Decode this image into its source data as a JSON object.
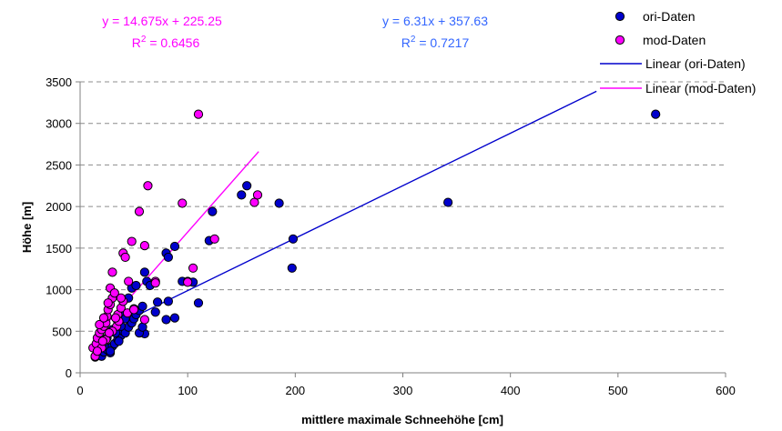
{
  "chart_data": {
    "type": "scatter",
    "xlabel": "mittlere maximale Schneehöhe [cm]",
    "ylabel": "Höhe [m]",
    "xlim": [
      0,
      600
    ],
    "ylim": [
      0,
      3500
    ],
    "xticks": [
      0,
      100,
      200,
      300,
      400,
      500,
      600
    ],
    "yticks": [
      0,
      500,
      1000,
      1500,
      2000,
      2500,
      3000,
      3500
    ],
    "grid": "horizontal dashed",
    "legend_position": "top-right",
    "series": [
      {
        "name": "ori-Daten",
        "kind": "points",
        "color": "#0000CC",
        "points": [
          [
            14,
            190
          ],
          [
            16,
            210
          ],
          [
            18,
            230
          ],
          [
            20,
            200
          ],
          [
            22,
            250
          ],
          [
            25,
            280
          ],
          [
            27,
            300
          ],
          [
            28,
            240
          ],
          [
            30,
            320
          ],
          [
            32,
            350
          ],
          [
            35,
            400
          ],
          [
            38,
            450
          ],
          [
            40,
            500
          ],
          [
            42,
            480
          ],
          [
            45,
            550
          ],
          [
            48,
            600
          ],
          [
            50,
            650
          ],
          [
            52,
            700
          ],
          [
            55,
            750
          ],
          [
            58,
            800
          ],
          [
            60,
            470
          ],
          [
            62,
            1100
          ],
          [
            65,
            1050
          ],
          [
            70,
            730
          ],
          [
            72,
            850
          ],
          [
            80,
            640
          ],
          [
            82,
            860
          ],
          [
            88,
            660
          ],
          [
            88,
            1520
          ],
          [
            95,
            1100
          ],
          [
            100,
            1100
          ],
          [
            105,
            1090
          ],
          [
            110,
            840
          ],
          [
            120,
            1590
          ],
          [
            123,
            1940
          ],
          [
            80,
            1440
          ],
          [
            82,
            1390
          ],
          [
            60,
            1210
          ],
          [
            150,
            2140
          ],
          [
            155,
            2250
          ],
          [
            185,
            2040
          ],
          [
            197,
            1260
          ],
          [
            198,
            1610
          ],
          [
            342,
            2050
          ],
          [
            535,
            3110
          ],
          [
            35,
            620
          ],
          [
            40,
            700
          ],
          [
            45,
            900
          ],
          [
            48,
            1020
          ],
          [
            52,
            1050
          ],
          [
            30,
            520
          ],
          [
            25,
            420
          ],
          [
            33,
            480
          ],
          [
            38,
            560
          ],
          [
            42,
            650
          ],
          [
            55,
            480
          ],
          [
            58,
            550
          ],
          [
            36,
            380
          ],
          [
            28,
            260
          ],
          [
            50,
            770
          ]
        ]
      },
      {
        "name": "mod-Daten",
        "kind": "points",
        "color": "#FF00FF",
        "points": [
          [
            12,
            300
          ],
          [
            14,
            200
          ],
          [
            15,
            350
          ],
          [
            16,
            420
          ],
          [
            18,
            480
          ],
          [
            20,
            520
          ],
          [
            22,
            560
          ],
          [
            24,
            600
          ],
          [
            25,
            680
          ],
          [
            26,
            760
          ],
          [
            28,
            820
          ],
          [
            28,
            1020
          ],
          [
            30,
            900
          ],
          [
            30,
            1210
          ],
          [
            32,
            960
          ],
          [
            35,
            700
          ],
          [
            38,
            780
          ],
          [
            40,
            860
          ],
          [
            40,
            1440
          ],
          [
            42,
            1390
          ],
          [
            48,
            1580
          ],
          [
            55,
            1940
          ],
          [
            60,
            640
          ],
          [
            60,
            1530
          ],
          [
            63,
            2250
          ],
          [
            70,
            1100
          ],
          [
            70,
            1080
          ],
          [
            95,
            2040
          ],
          [
            105,
            1260
          ],
          [
            110,
            3110
          ],
          [
            125,
            1610
          ],
          [
            162,
            2050
          ],
          [
            165,
            2140
          ],
          [
            100,
            1090
          ],
          [
            18,
            580
          ],
          [
            22,
            660
          ],
          [
            26,
            840
          ],
          [
            34,
            560
          ],
          [
            36,
            620
          ],
          [
            44,
            720
          ],
          [
            50,
            760
          ],
          [
            20,
            300
          ],
          [
            24,
            400
          ],
          [
            30,
            500
          ],
          [
            16,
            260
          ],
          [
            45,
            1100
          ],
          [
            38,
            900
          ],
          [
            33,
            660
          ],
          [
            27,
            480
          ],
          [
            21,
            380
          ]
        ]
      },
      {
        "name": "Linear (ori-Daten)",
        "kind": "line",
        "color": "#0000CC",
        "slope": 6.31,
        "intercept": 357.63,
        "x_range": [
          13,
          480
        ]
      },
      {
        "name": "Linear (mod-Daten)",
        "kind": "line",
        "color": "#FF00FF",
        "slope": 14.675,
        "intercept": 225.25,
        "x_range": [
          13,
          166
        ]
      }
    ],
    "annotations": [
      {
        "key": "mod",
        "color": "#FF00FF",
        "line1": "y = 14.675x + 225.25",
        "line2_prefix": "R",
        "line2_sup": "2",
        "line2_suffix": " = 0.6456"
      },
      {
        "key": "ori",
        "color": "#3366FF",
        "line1": "y = 6.31x + 357.63",
        "line2_prefix": "R",
        "line2_sup": "2",
        "line2_suffix": " = 0.7217"
      }
    ]
  }
}
